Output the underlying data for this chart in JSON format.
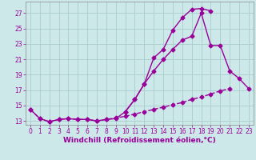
{
  "x": [
    0,
    1,
    2,
    3,
    4,
    5,
    6,
    7,
    8,
    9,
    10,
    11,
    12,
    13,
    14,
    15,
    16,
    17,
    18,
    19,
    20,
    21,
    22,
    23
  ],
  "line_top": [
    14.5,
    13.3,
    12.9,
    13.2,
    13.3,
    13.2,
    13.2,
    13.0,
    13.2,
    13.3,
    14.2,
    15.8,
    17.8,
    21.2,
    22.3,
    24.8,
    26.4,
    27.5,
    27.6,
    27.3,
    null,
    null,
    null,
    null
  ],
  "line_mid": [
    null,
    null,
    null,
    null,
    null,
    null,
    null,
    null,
    null,
    null,
    14.2,
    15.8,
    17.8,
    19.5,
    21.0,
    22.3,
    23.5,
    24.0,
    27.0,
    22.8,
    22.8,
    19.5,
    18.5,
    17.2
  ],
  "line_bot": [
    14.5,
    13.3,
    12.9,
    13.2,
    13.3,
    13.2,
    13.2,
    13.0,
    13.2,
    13.4,
    13.6,
    13.9,
    14.2,
    14.5,
    14.8,
    15.1,
    15.4,
    15.8,
    16.1,
    16.5,
    16.9,
    17.2,
    null,
    null
  ],
  "line_color": "#990099",
  "bg_color": "#cce8e8",
  "grid_color": "#aacccc",
  "xlabel": "Windchill (Refroidissement éolien,°C)",
  "ylim": [
    12.5,
    28.5
  ],
  "xlim": [
    -0.5,
    23.5
  ],
  "yticks": [
    13,
    15,
    17,
    19,
    21,
    23,
    25,
    27
  ],
  "xticks": [
    0,
    1,
    2,
    3,
    4,
    5,
    6,
    7,
    8,
    9,
    10,
    11,
    12,
    13,
    14,
    15,
    16,
    17,
    18,
    19,
    20,
    21,
    22,
    23
  ],
  "fontsize_axis": 5.5,
  "fontsize_xlabel": 6.5,
  "line_width": 1.0,
  "marker": "D",
  "marker_size": 2.5
}
